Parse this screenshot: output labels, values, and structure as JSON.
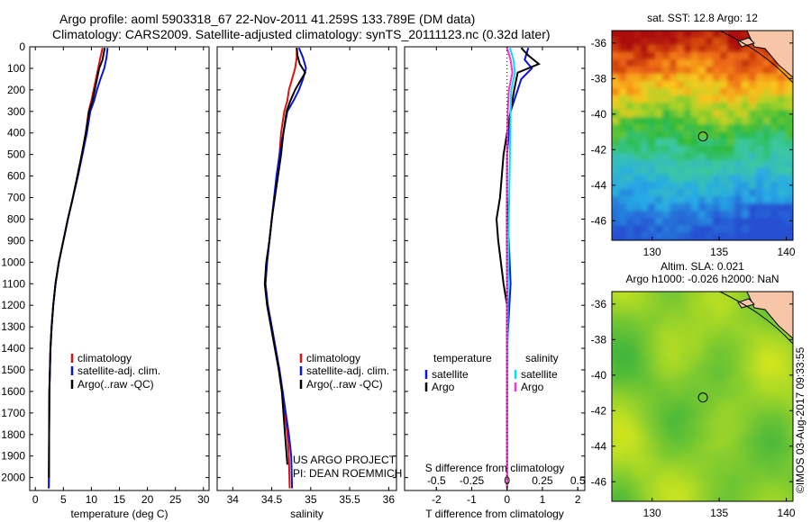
{
  "title": {
    "line1": "Argo profile: aoml 5903318_67 22-Nov-2011 41.259S 133.789E (DM data)",
    "line2": "Climatology: CARS2009. Satellite-adjusted climatology: synTS_20111123.nc (0.32d later)"
  },
  "colors": {
    "climatology": "#e01010",
    "satellite": "#0a14d8",
    "argo": "#000000",
    "sat_diff_s": "#00e0ff",
    "argo_diff_s": "#ff30d0"
  },
  "chart_data": [
    {
      "type": "line",
      "id": "temperature",
      "xlabel": "temperature (deg C)",
      "xlim": [
        -1,
        31
      ],
      "xticks": [
        0,
        5,
        10,
        15,
        20,
        25,
        30
      ],
      "ylim": [
        2060,
        0
      ],
      "yticks": [
        0,
        100,
        200,
        300,
        400,
        500,
        600,
        700,
        800,
        900,
        1000,
        1100,
        1200,
        1300,
        1400,
        1500,
        1600,
        1700,
        1800,
        1900,
        2000
      ],
      "legend": [
        "climatology",
        "satellite-adj. clim.",
        "Argo(..raw -QC)"
      ],
      "legend_position": "lower-center",
      "series": [
        {
          "name": "climatology",
          "color": "#e01010",
          "x": [
            12.0,
            11.6,
            11.2,
            10.8,
            10.4,
            10.0,
            9.5,
            9.0,
            8.3,
            7.5,
            6.7,
            5.8,
            5.0,
            4.2,
            3.6,
            3.2,
            2.9,
            2.7,
            2.6,
            2.5,
            2.45,
            2.42,
            2.4
          ],
          "y": [
            5,
            50,
            100,
            150,
            200,
            250,
            300,
            400,
            500,
            600,
            700,
            800,
            900,
            1000,
            1100,
            1200,
            1300,
            1400,
            1500,
            1600,
            1800,
            2000,
            2050
          ]
        },
        {
          "name": "satellite-adj. clim.",
          "color": "#0a14d8",
          "x": [
            12.9,
            12.7,
            12.3,
            11.6,
            11.0,
            10.5,
            9.8,
            9.2,
            8.4,
            7.6,
            6.7,
            5.8,
            5.0,
            4.2,
            3.6,
            3.2,
            2.9,
            2.7,
            2.6,
            2.5,
            2.45,
            2.42,
            2.4
          ],
          "y": [
            5,
            50,
            100,
            150,
            200,
            250,
            300,
            400,
            500,
            600,
            700,
            800,
            900,
            1000,
            1100,
            1200,
            1300,
            1400,
            1500,
            1600,
            1800,
            2000,
            2050
          ]
        },
        {
          "name": "Argo(..raw -QC)",
          "color": "#000000",
          "x": [
            12.4,
            12.2,
            12.0,
            11.4,
            11.0,
            10.6,
            10.2,
            9.6,
            9.0,
            8.3,
            7.5,
            6.7,
            5.8,
            5.0,
            4.2,
            3.6,
            3.2,
            2.9,
            2.7,
            2.6,
            2.5,
            2.45,
            2.42
          ],
          "y": [
            5,
            30,
            60,
            100,
            150,
            200,
            250,
            300,
            400,
            500,
            600,
            700,
            800,
            900,
            1000,
            1100,
            1200,
            1300,
            1400,
            1500,
            1600,
            1800,
            2000
          ]
        }
      ]
    },
    {
      "type": "line",
      "id": "salinity",
      "xlabel": "salinity",
      "xlim": [
        33.8,
        36.1
      ],
      "xticks": [
        34,
        34.5,
        35,
        35.5,
        36
      ],
      "ylim": [
        2060,
        0
      ],
      "legend": [
        "climatology",
        "satellite-adj. clim.",
        "Argo(..raw -QC)"
      ],
      "legend_position": "lower-right",
      "annotation": [
        "US ARGO PROJECT",
        "PI: DEAN ROEMMICH"
      ],
      "series": [
        {
          "name": "climatology",
          "color": "#e01010",
          "x": [
            34.82,
            34.82,
            34.8,
            34.76,
            34.72,
            34.7,
            34.66,
            34.62,
            34.6,
            34.57,
            34.53,
            34.5,
            34.47,
            34.44,
            34.42,
            34.45,
            34.5,
            34.55,
            34.59,
            34.63,
            34.67,
            34.7,
            34.72,
            34.73
          ],
          "y": [
            5,
            50,
            100,
            150,
            200,
            250,
            300,
            400,
            500,
            600,
            700,
            800,
            900,
            1000,
            1100,
            1200,
            1300,
            1400,
            1500,
            1600,
            1700,
            1800,
            1900,
            2050
          ]
        },
        {
          "name": "satellite-adj. clim.",
          "color": "#0a14d8",
          "x": [
            34.85,
            34.9,
            34.94,
            34.9,
            34.85,
            34.78,
            34.7,
            34.65,
            34.6,
            34.56,
            34.53,
            34.5,
            34.47,
            34.44,
            34.42,
            34.45,
            34.5,
            34.55,
            34.6,
            34.64,
            34.68,
            34.72,
            34.75,
            34.76
          ],
          "y": [
            5,
            50,
            100,
            150,
            200,
            250,
            300,
            400,
            500,
            600,
            700,
            800,
            900,
            1000,
            1100,
            1200,
            1300,
            1400,
            1500,
            1600,
            1700,
            1800,
            1900,
            2050
          ]
        },
        {
          "name": "Argo(..raw -QC)",
          "color": "#000000",
          "x": [
            34.82,
            34.83,
            34.86,
            34.93,
            34.88,
            34.8,
            34.74,
            34.69,
            34.65,
            34.62,
            34.58,
            34.54,
            34.5,
            34.47,
            34.43,
            34.41,
            34.44,
            34.49,
            34.54,
            34.59,
            34.63,
            34.67,
            34.7
          ],
          "y": [
            5,
            40,
            80,
            120,
            150,
            200,
            250,
            300,
            400,
            500,
            600,
            700,
            800,
            900,
            1000,
            1100,
            1200,
            1300,
            1400,
            1500,
            1600,
            1800,
            1940
          ]
        }
      ]
    },
    {
      "type": "line",
      "id": "difference",
      "xlabel": "T difference from climatology",
      "xlabel_top": "S difference from climatology",
      "xlim": [
        -2.9,
        2.2
      ],
      "xticks": [
        -2,
        -1,
        0,
        1,
        2
      ],
      "xticklabels": [
        "-2",
        "-1",
        "0",
        "1",
        "2"
      ],
      "s_xticks": [
        -0.5,
        -0.25,
        0,
        0.25,
        0.5
      ],
      "s_xticklabels": [
        "-0.5",
        "-0.25",
        "0",
        "0.25",
        "0.5"
      ],
      "ylim": [
        2060,
        0
      ],
      "legend_left_title": "temperature",
      "legend_right_title": "salinity",
      "legend": [
        "satellite",
        "Argo",
        "satellite",
        "Argo"
      ],
      "series": [
        {
          "name": "satellite",
          "quantity": "temperature",
          "color": "#0a14d8",
          "x": [
            0.6,
            0.5,
            0.7,
            0.4,
            0.3,
            0.1,
            0.0,
            0.0,
            0.05,
            0.1,
            0.0,
            0.0,
            0.0
          ],
          "y": [
            5,
            60,
            100,
            150,
            200,
            300,
            500,
            700,
            900,
            1100,
            1400,
            1800,
            2050
          ]
        },
        {
          "name": "Argo",
          "quantity": "temperature",
          "color": "#000000",
          "x": [
            0.4,
            0.6,
            0.9,
            0.3,
            0.2,
            0.1,
            -0.1,
            -0.2,
            -0.3,
            -0.25,
            -0.1,
            0.0,
            0.0
          ],
          "y": [
            5,
            40,
            80,
            120,
            200,
            300,
            500,
            700,
            800,
            900,
            1100,
            1200,
            1400
          ]
        },
        {
          "name": "satellite",
          "quantity": "salinity",
          "color": "#00e0ff",
          "x": [
            0.08,
            0.18,
            0.22,
            0.12,
            0.1,
            0.08,
            0.05,
            0.02,
            0.0
          ],
          "y": [
            5,
            60,
            120,
            200,
            300,
            500,
            800,
            1200,
            2050
          ]
        },
        {
          "name": "Argo",
          "quantity": "salinity",
          "color": "#ff30d0",
          "x": [
            0.0,
            0.1,
            0.15,
            0.05,
            0.02,
            0.0,
            -0.01,
            0.0,
            0.0
          ],
          "y": [
            5,
            60,
            120,
            200,
            300,
            500,
            800,
            1200,
            2050
          ]
        }
      ]
    },
    {
      "type": "heatmap",
      "id": "sst-map",
      "title": "sat. SST: 12.8 Argo: 12",
      "xlim": [
        127,
        140.5
      ],
      "ylim": [
        -47.1,
        -35.3
      ],
      "xticks": [
        130,
        135,
        140
      ],
      "yticks": [
        -36,
        -38,
        -40,
        -42,
        -44,
        -46
      ],
      "marker": {
        "lon": 133.789,
        "lat": -41.259
      }
    },
    {
      "type": "heatmap",
      "id": "sla-map",
      "title_line1": "Altim. SLA: 0.021",
      "title_line2": "Argo h1000: -0.026 h2000: NaN",
      "xlim": [
        127,
        140.5
      ],
      "ylim": [
        -47.1,
        -35.3
      ],
      "xticks": [
        130,
        135,
        140
      ],
      "yticks": [
        -36,
        -38,
        -40,
        -42,
        -44,
        -46
      ],
      "marker": {
        "lon": 133.789,
        "lat": -41.259
      }
    }
  ],
  "credit": "©IMOS 03-Aug-2017 09:33:55"
}
